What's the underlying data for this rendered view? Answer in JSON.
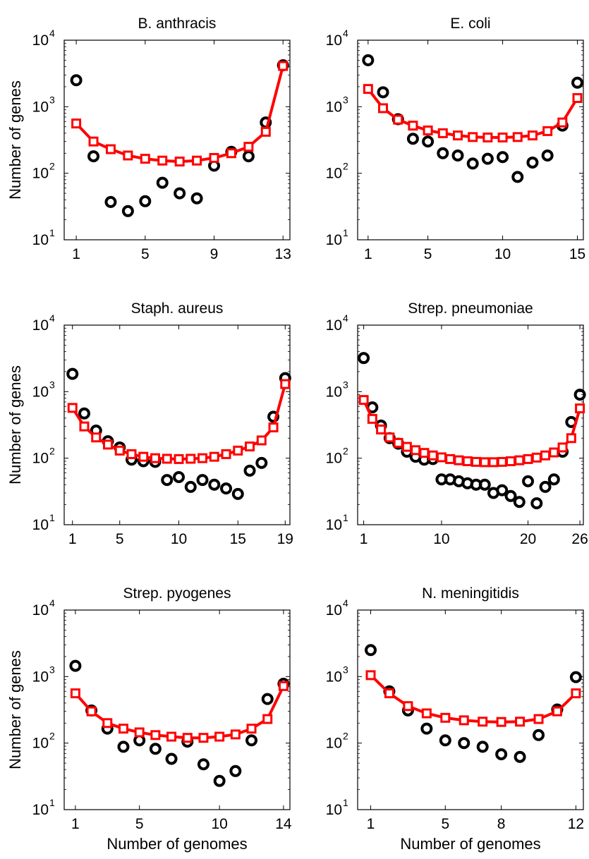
{
  "chart_data": [
    {
      "type": "scatter",
      "title": "B. anthracis",
      "xlabel": "",
      "ylabel": "Number of genes",
      "xlim": [
        0.3,
        13.4
      ],
      "ylim": [
        10,
        10000
      ],
      "yscale": "log",
      "xticks": [
        1,
        5,
        9,
        13
      ],
      "yticks": [
        10,
        100,
        1000,
        10000
      ],
      "grid": false,
      "series": [
        {
          "marker": "circle",
          "color": "#000000",
          "x": [
            1,
            2,
            3,
            4,
            5,
            6,
            7,
            8,
            9,
            10,
            11,
            12,
            13
          ],
          "y": [
            2500,
            180,
            37,
            27,
            38,
            72,
            50,
            42,
            130,
            210,
            180,
            580,
            4200
          ]
        },
        {
          "marker": "square-line",
          "color": "#ff0000",
          "x": [
            1,
            2,
            3,
            4,
            5,
            6,
            7,
            8,
            9,
            10,
            11,
            12,
            13
          ],
          "y": [
            560,
            300,
            230,
            185,
            165,
            155,
            150,
            155,
            170,
            200,
            250,
            420,
            4100
          ]
        }
      ]
    },
    {
      "type": "scatter",
      "title": "E. coli",
      "xlabel": "",
      "ylabel": "",
      "xlim": [
        0.3,
        15.4
      ],
      "ylim": [
        10,
        10000
      ],
      "yscale": "log",
      "xticks": [
        1,
        5,
        10,
        15
      ],
      "yticks": [
        10,
        100,
        1000,
        10000
      ],
      "grid": false,
      "series": [
        {
          "marker": "circle",
          "color": "#000000",
          "x": [
            1,
            2,
            3,
            4,
            5,
            6,
            7,
            8,
            9,
            10,
            11,
            12,
            13,
            14,
            15
          ],
          "y": [
            5000,
            1650,
            650,
            330,
            300,
            200,
            185,
            140,
            165,
            175,
            88,
            145,
            185,
            520,
            2300
          ]
        },
        {
          "marker": "square-line",
          "color": "#ff0000",
          "x": [
            1,
            2,
            3,
            4,
            5,
            6,
            7,
            8,
            9,
            10,
            11,
            12,
            13,
            14,
            15
          ],
          "y": [
            1850,
            950,
            640,
            520,
            440,
            400,
            370,
            350,
            345,
            345,
            350,
            370,
            430,
            580,
            1350
          ]
        }
      ]
    },
    {
      "type": "scatter",
      "title": "Staph. aureus",
      "xlabel": "",
      "ylabel": "Number of genes",
      "xlim": [
        0.3,
        19.4
      ],
      "ylim": [
        10,
        10000
      ],
      "yscale": "log",
      "xticks": [
        1,
        5,
        10,
        15,
        19
      ],
      "yticks": [
        10,
        100,
        1000,
        10000
      ],
      "grid": false,
      "series": [
        {
          "marker": "circle",
          "color": "#000000",
          "x": [
            1,
            2,
            3,
            4,
            5,
            6,
            7,
            8,
            9,
            10,
            11,
            12,
            13,
            14,
            15,
            16,
            17,
            18,
            19
          ],
          "y": [
            1850,
            470,
            260,
            180,
            145,
            95,
            90,
            88,
            47,
            52,
            37,
            47,
            40,
            35,
            29,
            65,
            85,
            420,
            1600
          ]
        },
        {
          "marker": "square-line",
          "color": "#ff0000",
          "x": [
            1,
            2,
            3,
            4,
            5,
            6,
            7,
            8,
            9,
            10,
            11,
            12,
            13,
            14,
            15,
            16,
            17,
            18,
            19
          ],
          "y": [
            570,
            300,
            205,
            160,
            130,
            115,
            105,
            100,
            98,
            97,
            98,
            100,
            105,
            115,
            130,
            150,
            185,
            290,
            1300
          ]
        }
      ]
    },
    {
      "type": "scatter",
      "title": "Strep. pneumoniae",
      "xlabel": "",
      "ylabel": "",
      "xlim": [
        0.3,
        26.4
      ],
      "ylim": [
        10,
        10000
      ],
      "yscale": "log",
      "xticks": [
        1,
        10,
        20,
        26
      ],
      "yticks": [
        10,
        100,
        1000,
        10000
      ],
      "grid": false,
      "series": [
        {
          "marker": "circle",
          "color": "#000000",
          "x": [
            1,
            2,
            3,
            4,
            5,
            6,
            7,
            8,
            9,
            10,
            11,
            12,
            13,
            14,
            15,
            16,
            17,
            18,
            19,
            20,
            21,
            22,
            23,
            24,
            25,
            26
          ],
          "y": [
            3200,
            580,
            310,
            200,
            165,
            125,
            105,
            95,
            97,
            48,
            48,
            45,
            42,
            40,
            40,
            30,
            33,
            27,
            22,
            45,
            21,
            37,
            48,
            125,
            350,
            900
          ]
        },
        {
          "marker": "square-line",
          "color": "#ff0000",
          "x": [
            1,
            2,
            3,
            4,
            5,
            6,
            7,
            8,
            9,
            10,
            11,
            12,
            13,
            14,
            15,
            16,
            17,
            18,
            19,
            20,
            21,
            22,
            23,
            24,
            25,
            26
          ],
          "y": [
            750,
            390,
            270,
            205,
            170,
            148,
            132,
            120,
            110,
            103,
            97,
            93,
            90,
            88,
            87,
            87,
            88,
            90,
            93,
            97,
            102,
            110,
            122,
            145,
            200,
            560
          ]
        }
      ]
    },
    {
      "type": "scatter",
      "title": "Strep. pyogenes",
      "xlabel": "Number of genomes",
      "ylabel": "Number of genes",
      "xlim": [
        0.3,
        14.4
      ],
      "ylim": [
        10,
        10000
      ],
      "yscale": "log",
      "xticks": [
        1,
        5,
        10,
        14
      ],
      "yticks": [
        10,
        100,
        1000,
        10000
      ],
      "grid": false,
      "series": [
        {
          "marker": "circle",
          "color": "#000000",
          "x": [
            1,
            2,
            3,
            4,
            5,
            6,
            7,
            8,
            9,
            10,
            11,
            12,
            13,
            14
          ],
          "y": [
            1450,
            310,
            165,
            88,
            110,
            82,
            58,
            105,
            48,
            27,
            38,
            110,
            460,
            780
          ]
        },
        {
          "marker": "square-line",
          "color": "#ff0000",
          "x": [
            1,
            2,
            3,
            4,
            5,
            6,
            7,
            8,
            9,
            10,
            11,
            12,
            13,
            14
          ],
          "y": [
            560,
            300,
            200,
            165,
            145,
            132,
            125,
            120,
            120,
            125,
            135,
            165,
            230,
            720
          ]
        }
      ]
    },
    {
      "type": "scatter",
      "title": "N. meningitidis",
      "xlabel": "Number of genomes",
      "ylabel": "",
      "xlim": [
        0.3,
        12.4
      ],
      "ylim": [
        10,
        10000
      ],
      "yscale": "log",
      "xticks": [
        1,
        5,
        8,
        12
      ],
      "yticks": [
        10,
        100,
        1000,
        10000
      ],
      "grid": false,
      "series": [
        {
          "marker": "circle",
          "color": "#000000",
          "x": [
            1,
            2,
            3,
            4,
            5,
            6,
            7,
            8,
            9,
            10,
            11,
            12
          ],
          "y": [
            2500,
            600,
            310,
            165,
            110,
            100,
            88,
            68,
            62,
            132,
            320,
            980
          ]
        },
        {
          "marker": "square-line",
          "color": "#ff0000",
          "x": [
            1,
            2,
            3,
            4,
            5,
            6,
            7,
            8,
            9,
            10,
            11,
            12
          ],
          "y": [
            1050,
            560,
            360,
            280,
            240,
            220,
            210,
            208,
            210,
            230,
            300,
            560
          ]
        }
      ]
    }
  ]
}
